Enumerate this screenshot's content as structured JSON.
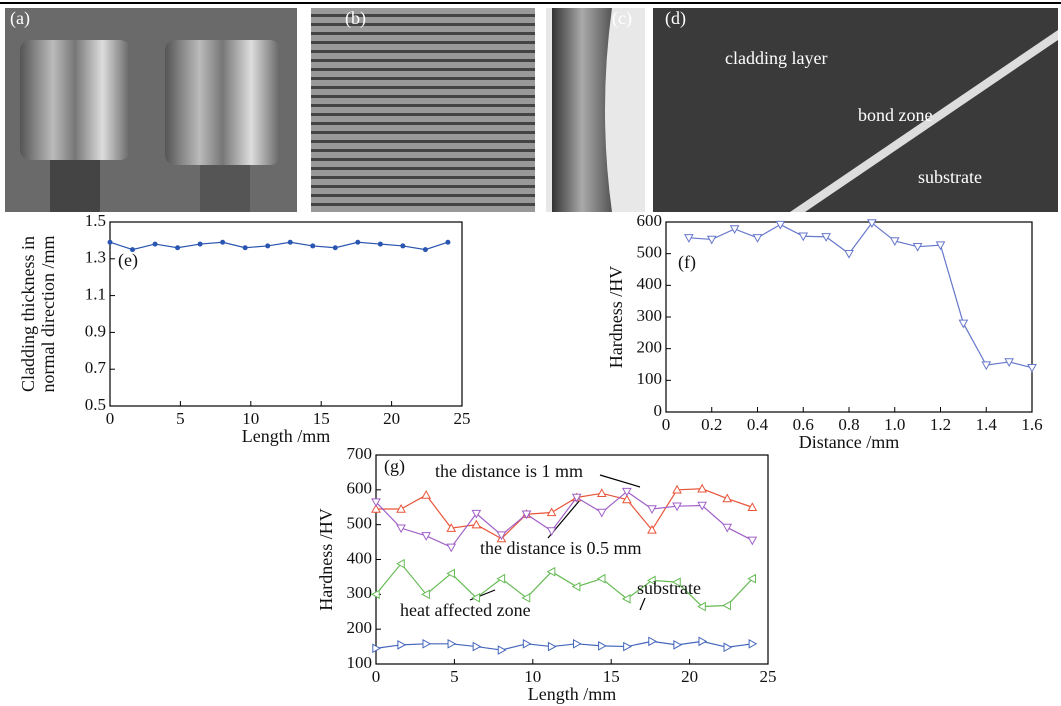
{
  "panels": [
    {
      "label": "(a)"
    },
    {
      "label": "(b)"
    },
    {
      "label": "(c)"
    },
    {
      "label": "(d)",
      "annotations": [
        "cladding layer",
        "bond zone",
        "substrate"
      ]
    }
  ],
  "chart_data": [
    {
      "type": "line",
      "panel_label": "(e)",
      "xlabel": "Length /mm",
      "ylabel": [
        "Cladding thickness in",
        "normal direction /mm"
      ],
      "x": [
        0,
        1.6,
        3.2,
        4.8,
        6.4,
        8,
        9.6,
        11.2,
        12.8,
        14.4,
        16,
        17.6,
        19.2,
        20.8,
        22.4,
        24
      ],
      "values": [
        1.39,
        1.35,
        1.38,
        1.36,
        1.38,
        1.39,
        1.36,
        1.37,
        1.39,
        1.37,
        1.36,
        1.39,
        1.38,
        1.37,
        1.35,
        1.39
      ],
      "color": "#2a55b0",
      "marker": "dot",
      "xlim": [
        0,
        25
      ],
      "xticks": [
        0,
        5,
        10,
        15,
        20,
        25
      ],
      "ylim": [
        0.5,
        1.5
      ],
      "yticks": [
        0.5,
        0.7,
        0.9,
        1.1,
        1.3,
        1.5
      ]
    },
    {
      "type": "line",
      "panel_label": "(f)",
      "xlabel": "Distance /mm",
      "ylabel": [
        "Hardness /HV"
      ],
      "x": [
        0.1,
        0.2,
        0.3,
        0.4,
        0.5,
        0.6,
        0.7,
        0.8,
        0.9,
        1.0,
        1.1,
        1.2,
        1.3,
        1.4,
        1.5,
        1.6
      ],
      "values": [
        550,
        545,
        578,
        550,
        592,
        555,
        553,
        500,
        597,
        540,
        522,
        527,
        280,
        148,
        158,
        140
      ],
      "color": "#6677cc",
      "marker": "down",
      "xlim": [
        0,
        1.6
      ],
      "xticks": [
        0,
        0.2,
        0.4,
        0.6,
        0.8,
        {
          "value": 1,
          "label": "1.0"
        },
        1.2,
        1.4,
        1.6
      ],
      "ylim": [
        0,
        600
      ],
      "yticks": [
        0,
        100,
        200,
        300,
        400,
        500,
        600
      ]
    },
    {
      "type": "line",
      "panel_label": "(g)",
      "xlabel": "Length /mm",
      "ylabel": [
        "Hardness /HV"
      ],
      "x": [
        0,
        1.6,
        3.2,
        4.8,
        6.4,
        8,
        9.6,
        11.2,
        12.8,
        14.4,
        16,
        17.6,
        19.2,
        20.8,
        22.4,
        24
      ],
      "series": [
        {
          "name": "the distance is 1 mm",
          "color": "#e8553a",
          "marker": "up",
          "values": [
            545,
            545,
            585,
            490,
            500,
            460,
            530,
            535,
            578,
            590,
            572,
            485,
            600,
            603,
            575,
            550
          ]
        },
        {
          "name": "the distance is 0.5 mm",
          "color": "#a060c8",
          "marker": "down",
          "values": [
            565,
            490,
            468,
            435,
            532,
            470,
            530,
            482,
            578,
            535,
            595,
            545,
            553,
            555,
            492,
            455
          ]
        },
        {
          "name": "heat affected zone",
          "color": "#66bb55",
          "marker": "left",
          "values": [
            300,
            388,
            300,
            360,
            290,
            345,
            290,
            365,
            322,
            345,
            287,
            340,
            335,
            265,
            268,
            345
          ]
        },
        {
          "name": "substrate",
          "color": "#4466bb",
          "marker": "right",
          "values": [
            145,
            155,
            158,
            158,
            150,
            140,
            158,
            150,
            158,
            152,
            150,
            165,
            155,
            165,
            148,
            158
          ]
        }
      ],
      "xlim": [
        0,
        25
      ],
      "xticks": [
        0,
        5,
        10,
        15,
        20,
        25
      ],
      "ylim": [
        100,
        700
      ],
      "yticks": [
        100,
        200,
        300,
        400,
        500,
        600,
        700
      ]
    }
  ]
}
